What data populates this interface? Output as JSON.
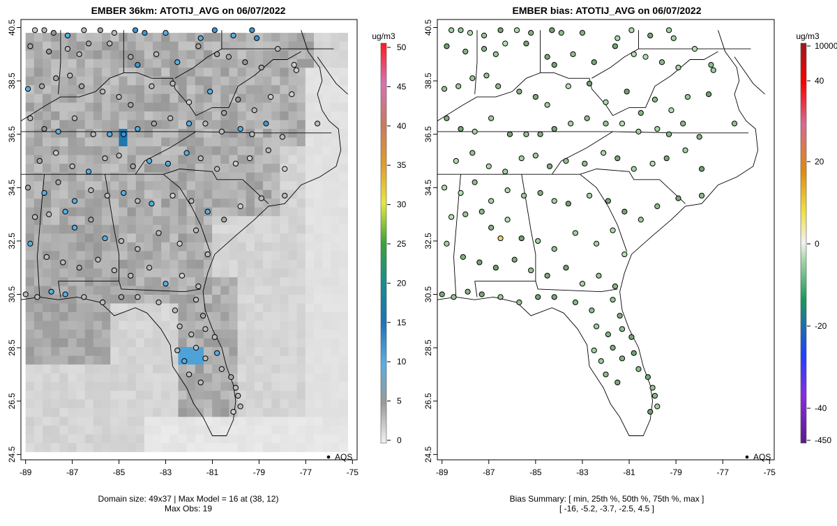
{
  "chart_data": [
    {
      "type": "map",
      "title": "EMBER 36km: ATOTIJ_AVG on 06/07/2022",
      "xticks": [
        "-89",
        "-87",
        "-85",
        "-83",
        "-81",
        "-79",
        "-77",
        "-75"
      ],
      "yticks": [
        "24.5",
        "26.5",
        "28.5",
        "30.5",
        "32.5",
        "34.5",
        "36.5",
        "38.5",
        "40.5"
      ],
      "xlim": [
        -89.2,
        -74.8
      ],
      "ylim": [
        24.3,
        40.8
      ],
      "colorbar": {
        "unit": "ug/m3",
        "ticks": [
          "0",
          "5",
          "10",
          "15",
          "20",
          "25",
          "30",
          "35",
          "40",
          "45",
          "50"
        ],
        "range": [
          0,
          50
        ]
      },
      "legend": {
        "label": "AQS",
        "position": "bottom-right"
      },
      "footer": [
        "Domain size: 49x37 | Max Model = 16 at (38, 12)",
        "Max Obs: 19"
      ],
      "model_max": 16,
      "obs_max": 19,
      "sites": [
        [
          -88.6,
          40.4,
          2
        ],
        [
          -88.2,
          40.4,
          3
        ],
        [
          -87.8,
          40.3,
          5
        ],
        [
          -87.2,
          40.2,
          10
        ],
        [
          -86.5,
          40.4,
          3
        ],
        [
          -85.8,
          40.4,
          4
        ],
        [
          -85.2,
          40.3,
          3
        ],
        [
          -84.3,
          40.4,
          12
        ],
        [
          -83.9,
          40.3,
          12
        ],
        [
          -83.0,
          40.3,
          10
        ],
        [
          -81.5,
          40.1,
          9
        ],
        [
          -80.9,
          40.4,
          12
        ],
        [
          -80.1,
          40.2,
          10
        ],
        [
          -79.3,
          40.4,
          12
        ],
        [
          -79.1,
          40.1,
          12
        ],
        [
          -88.8,
          39.8,
          4
        ],
        [
          -88.0,
          39.6,
          5
        ],
        [
          -87.2,
          39.7,
          3
        ],
        [
          -86.7,
          39.5,
          3
        ],
        [
          -86.3,
          39.9,
          4
        ],
        [
          -85.4,
          39.9,
          3
        ],
        [
          -84.5,
          39.4,
          4
        ],
        [
          -84.2,
          39.1,
          12
        ],
        [
          -83.4,
          39.5,
          3
        ],
        [
          -82.5,
          39.2,
          10
        ],
        [
          -81.6,
          39.8,
          4
        ],
        [
          -80.8,
          39.5,
          4
        ],
        [
          -80.3,
          39.4,
          4
        ],
        [
          -79.6,
          39.2,
          5
        ],
        [
          -78.9,
          39.0,
          4
        ],
        [
          -78.2,
          39.7,
          3
        ],
        [
          -77.5,
          39.1,
          2
        ],
        [
          -88.9,
          38.2,
          10
        ],
        [
          -88.3,
          38.3,
          4
        ],
        [
          -87.7,
          38.6,
          4
        ],
        [
          -87.1,
          38.7,
          3
        ],
        [
          -86.6,
          38.3,
          4
        ],
        [
          -85.7,
          38.1,
          3
        ],
        [
          -85.0,
          37.9,
          3
        ],
        [
          -84.5,
          37.6,
          4
        ],
        [
          -83.6,
          38.3,
          3
        ],
        [
          -82.7,
          38.4,
          3
        ],
        [
          -82.0,
          37.7,
          2
        ],
        [
          -81.1,
          38.1,
          10
        ],
        [
          -80.5,
          37.3,
          4
        ],
        [
          -79.9,
          37.8,
          5
        ],
        [
          -79.2,
          37.4,
          3
        ],
        [
          -78.5,
          37.9,
          2
        ],
        [
          -77.4,
          38.9,
          2
        ],
        [
          -77.6,
          38.0,
          2
        ],
        [
          -88.8,
          37.1,
          3
        ],
        [
          -88.2,
          36.7,
          5
        ],
        [
          -87.6,
          36.6,
          10
        ],
        [
          -86.9,
          37.1,
          3
        ],
        [
          -86.1,
          36.5,
          3
        ],
        [
          -85.4,
          36.5,
          10
        ],
        [
          -84.8,
          36.5,
          12
        ],
        [
          -84.2,
          36.7,
          10
        ],
        [
          -83.5,
          36.9,
          4
        ],
        [
          -82.8,
          37.1,
          3
        ],
        [
          -82.0,
          36.9,
          10
        ],
        [
          -81.3,
          36.9,
          3
        ],
        [
          -80.6,
          36.6,
          3
        ],
        [
          -79.8,
          36.7,
          10
        ],
        [
          -79.3,
          36.5,
          3
        ],
        [
          -78.7,
          36.9,
          12
        ],
        [
          -78.0,
          36.4,
          3
        ],
        [
          -76.5,
          36.9,
          3
        ],
        [
          -88.4,
          35.5,
          4
        ],
        [
          -87.7,
          35.8,
          2
        ],
        [
          -87.0,
          35.3,
          3
        ],
        [
          -86.3,
          35.1,
          10
        ],
        [
          -85.6,
          35.6,
          3
        ],
        [
          -85.0,
          35.7,
          3
        ],
        [
          -84.4,
          35.3,
          4
        ],
        [
          -83.7,
          35.5,
          10
        ],
        [
          -82.9,
          35.4,
          10
        ],
        [
          -82.1,
          35.8,
          10
        ],
        [
          -81.5,
          35.6,
          3
        ],
        [
          -80.8,
          35.2,
          3
        ],
        [
          -80.0,
          35.4,
          2
        ],
        [
          -79.4,
          35.6,
          2
        ],
        [
          -78.6,
          35.9,
          3
        ],
        [
          -77.9,
          35.2,
          2
        ],
        [
          -88.9,
          34.5,
          4
        ],
        [
          -88.2,
          34.3,
          10
        ],
        [
          -87.6,
          34.7,
          4
        ],
        [
          -86.9,
          34.0,
          10
        ],
        [
          -86.2,
          34.4,
          3
        ],
        [
          -85.5,
          34.2,
          3
        ],
        [
          -84.8,
          34.3,
          10
        ],
        [
          -84.2,
          34.0,
          3
        ],
        [
          -83.6,
          33.9,
          10
        ],
        [
          -82.7,
          34.2,
          2
        ],
        [
          -81.9,
          34.0,
          3
        ],
        [
          -81.2,
          33.6,
          10
        ],
        [
          -80.5,
          33.3,
          4
        ],
        [
          -79.8,
          33.8,
          2
        ],
        [
          -78.9,
          34.1,
          3
        ],
        [
          -77.9,
          34.2,
          3
        ],
        [
          -88.6,
          33.4,
          3
        ],
        [
          -88.0,
          33.5,
          3
        ],
        [
          -87.3,
          33.6,
          10
        ],
        [
          -86.9,
          33.0,
          10
        ],
        [
          -86.2,
          33.3,
          4
        ],
        [
          -85.6,
          32.6,
          10
        ],
        [
          -84.9,
          32.5,
          3
        ],
        [
          -84.2,
          32.2,
          3
        ],
        [
          -83.3,
          32.8,
          3
        ],
        [
          -82.4,
          32.4,
          2
        ],
        [
          -81.7,
          32.9,
          3
        ],
        [
          -81.2,
          32.0,
          3
        ],
        [
          -88.8,
          32.4,
          10
        ],
        [
          -88.1,
          31.9,
          3
        ],
        [
          -87.4,
          31.7,
          3
        ],
        [
          -86.7,
          31.5,
          4
        ],
        [
          -85.9,
          31.8,
          3
        ],
        [
          -85.2,
          31.4,
          3
        ],
        [
          -84.5,
          31.2,
          3
        ],
        [
          -83.7,
          31.5,
          3
        ],
        [
          -83.0,
          30.9,
          10
        ],
        [
          -82.3,
          31.2,
          2
        ],
        [
          -81.6,
          30.8,
          3
        ],
        [
          -89.0,
          30.5,
          3
        ],
        [
          -88.5,
          30.4,
          3
        ],
        [
          -87.9,
          30.6,
          10
        ],
        [
          -87.3,
          30.5,
          10
        ],
        [
          -86.5,
          30.4,
          3
        ],
        [
          -85.7,
          30.2,
          3
        ],
        [
          -84.9,
          30.4,
          4
        ],
        [
          -84.2,
          30.4,
          3
        ],
        [
          -83.3,
          30.2,
          3
        ],
        [
          -82.6,
          29.9,
          3
        ],
        [
          -81.7,
          30.3,
          3
        ],
        [
          -81.4,
          29.7,
          4
        ],
        [
          -82.4,
          29.3,
          3
        ],
        [
          -81.9,
          29.0,
          3
        ],
        [
          -81.3,
          29.2,
          3
        ],
        [
          -80.9,
          28.9,
          3
        ],
        [
          -82.5,
          28.4,
          3
        ],
        [
          -82.2,
          28.0,
          10
        ],
        [
          -81.7,
          28.5,
          3
        ],
        [
          -81.3,
          28.1,
          3
        ],
        [
          -80.8,
          28.3,
          10
        ],
        [
          -80.6,
          27.7,
          3
        ],
        [
          -82.0,
          27.5,
          3
        ],
        [
          -81.5,
          27.2,
          3
        ],
        [
          -80.2,
          27.4,
          4
        ],
        [
          -80.0,
          27.0,
          3
        ],
        [
          -79.9,
          26.7,
          3
        ],
        [
          -79.8,
          26.3,
          3
        ],
        [
          -80.1,
          26.1,
          2
        ]
      ]
    },
    {
      "type": "map",
      "title": "EMBER bias: ATOTIJ_AVG on 06/07/2022",
      "xticks": [
        "-89",
        "-87",
        "-85",
        "-83",
        "-81",
        "-79",
        "-77",
        "-75"
      ],
      "yticks": [
        "24.5",
        "26.5",
        "28.5",
        "30.5",
        "32.5",
        "34.5",
        "36.5",
        "38.5",
        "40.5"
      ],
      "xlim": [
        -89.2,
        -74.8
      ],
      "ylim": [
        24.3,
        40.8
      ],
      "colorbar": {
        "unit": "ug/m3",
        "ticks": [
          "10000",
          "40",
          "20",
          "0",
          "-20",
          "-40",
          "-450"
        ],
        "range": [
          -450,
          10000
        ]
      },
      "legend": {
        "label": "AQS",
        "position": "bottom-right"
      },
      "footer": [
        "Bias Summary: [ min, 25th %, 50th %, 75th %, max ]",
        "[ -16,  -5.2,  -3.7,  -2.5,  4.5 ]"
      ],
      "bias_summary": {
        "min": -16,
        "p25": -5.2,
        "p50": -3.7,
        "p75": -2.5,
        "max": 4.5
      }
    }
  ]
}
